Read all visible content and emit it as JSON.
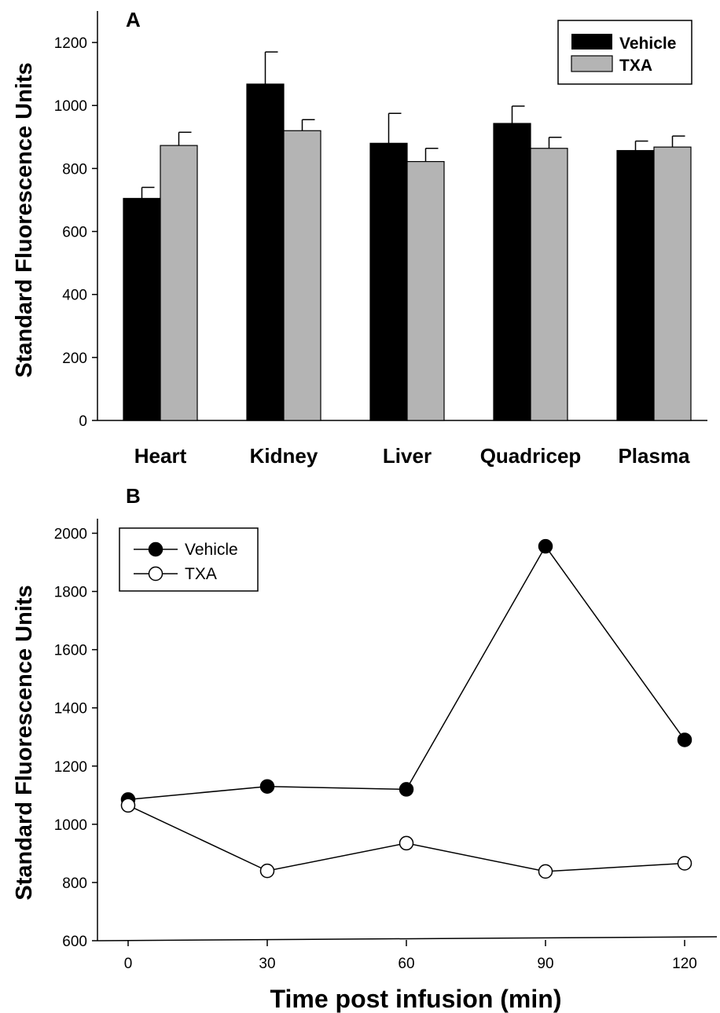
{
  "chart_data": [
    {
      "panel_label": "A",
      "type": "bar",
      "ylabel": "Standard Fluorescence Units",
      "xlabel": "",
      "ylim": [
        0,
        1300
      ],
      "yticks": [
        0,
        200,
        400,
        600,
        800,
        1000,
        1200
      ],
      "categories": [
        "Heart",
        "Kidney",
        "Liver",
        "Quadricep",
        "Plasma"
      ],
      "series": [
        {
          "name": "Vehicle",
          "color": "#000000",
          "values": [
            705,
            1068,
            880,
            943,
            857
          ],
          "errors": [
            35,
            102,
            95,
            55,
            30
          ]
        },
        {
          "name": "TXA",
          "color": "#b4b4b4",
          "values": [
            873,
            920,
            822,
            864,
            868
          ],
          "errors": [
            42,
            35,
            42,
            35,
            35
          ]
        }
      ],
      "legend_position": "top-right",
      "grid": false
    },
    {
      "panel_label": "B",
      "type": "line",
      "ylabel": "Standard Fluorescence Units",
      "xlabel": "Time post infusion (min)",
      "ylim": [
        600,
        2050
      ],
      "yticks": [
        600,
        800,
        1000,
        1200,
        1400,
        1600,
        1800,
        2000
      ],
      "xlim": [
        -6,
        128
      ],
      "xticks": [
        0,
        30,
        60,
        90,
        120
      ],
      "x": [
        0,
        30,
        60,
        90,
        120
      ],
      "series": [
        {
          "name": "Vehicle",
          "marker": "filled-circle",
          "color": "#000000",
          "values": [
            1085,
            1130,
            1120,
            1955,
            1290
          ]
        },
        {
          "name": "TXA",
          "marker": "open-circle",
          "color": "#000000",
          "values": [
            1065,
            840,
            935,
            838,
            866
          ]
        }
      ],
      "legend_position": "top-left",
      "grid": false
    }
  ]
}
